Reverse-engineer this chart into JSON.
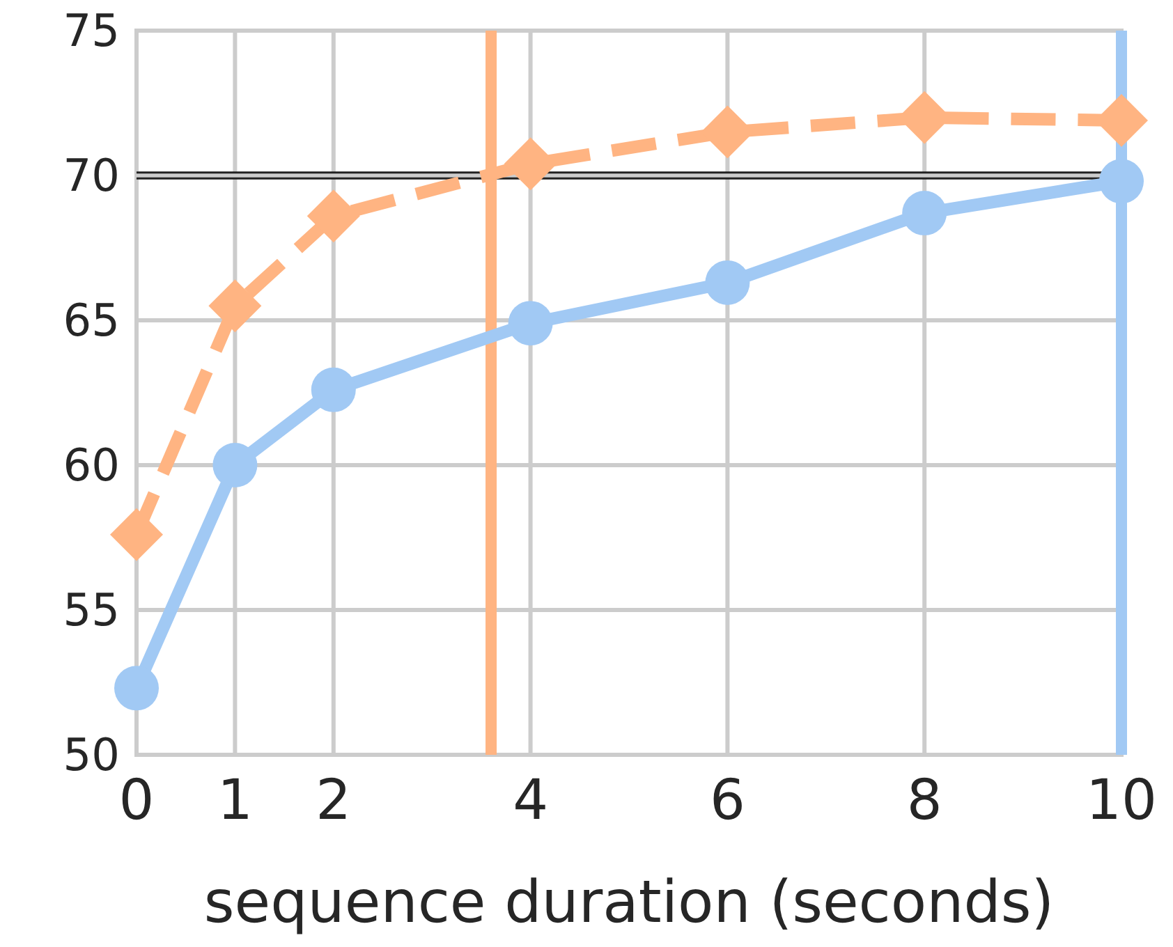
{
  "chart_data": {
    "type": "line",
    "xlabel": "sequence duration (seconds)",
    "x": [
      0,
      1,
      2,
      4,
      6,
      8,
      10
    ],
    "series": [
      {
        "color": "#a1c9f4",
        "values": [
          52.3,
          60.0,
          62.6,
          64.9,
          66.3,
          68.7,
          69.8
        ],
        "marker": "circle",
        "line_style": "solid"
      },
      {
        "color": "#ffb482",
        "values": [
          57.6,
          65.5,
          68.6,
          70.4,
          71.5,
          72.0,
          71.9
        ],
        "marker": "diamond",
        "line_style": "dashed"
      }
    ],
    "ref_lines": [
      {
        "axis": "y",
        "value": 70.1,
        "color": "#222222"
      },
      {
        "axis": "y",
        "value": 69.9,
        "color": "#222222"
      },
      {
        "axis": "x",
        "value": 3.6,
        "color": "#ffb482"
      },
      {
        "axis": "x",
        "value": 10,
        "color": "#a1c9f4"
      }
    ],
    "xlim": [
      0,
      10
    ],
    "xticks": [
      0,
      1,
      2,
      4,
      6,
      8,
      10
    ],
    "ylim": [
      50,
      75
    ],
    "yticks": [
      50,
      55,
      60,
      65,
      70,
      75
    ],
    "grid": true
  }
}
